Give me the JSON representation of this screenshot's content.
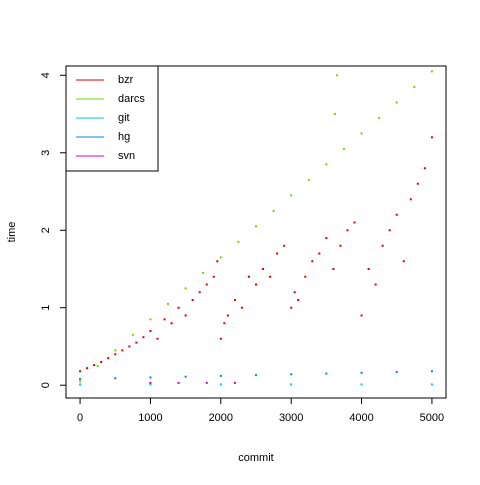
{
  "chart_data": {
    "type": "scatter",
    "x_label": "commit",
    "y_label": "time",
    "xlim": [
      -200,
      5200
    ],
    "ylim": [
      -0.165,
      4.12
    ],
    "xticks": [
      0,
      1000,
      2000,
      3000,
      4000,
      5000
    ],
    "yticks": [
      0,
      1,
      2,
      3,
      4
    ],
    "legend": "top-left",
    "series": [
      {
        "name": "bzr",
        "color": "#e00000",
        "x": [
          0,
          100,
          200,
          300,
          400,
          500,
          600,
          700,
          800,
          900,
          1000,
          1100,
          1200,
          1300,
          1400,
          1500,
          1600,
          1700,
          1800,
          1900,
          1950,
          2000,
          2050,
          2100,
          2200,
          2300,
          2400,
          2500,
          2600,
          2700,
          2800,
          2900,
          3000,
          3050,
          3100,
          3200,
          3300,
          3400,
          3500,
          3600,
          3700,
          3800,
          3900,
          4000,
          4100,
          4200,
          4300,
          4400,
          4500,
          4600,
          4700,
          4800,
          4900,
          5000
        ],
        "values": [
          0.18,
          0.22,
          0.26,
          0.3,
          0.35,
          0.4,
          0.45,
          0.5,
          0.55,
          0.62,
          0.7,
          0.6,
          0.85,
          0.8,
          1.0,
          0.9,
          1.1,
          1.2,
          1.3,
          1.4,
          1.6,
          0.6,
          0.8,
          0.9,
          1.1,
          1.0,
          1.4,
          1.3,
          1.5,
          1.4,
          1.7,
          1.8,
          1.0,
          1.2,
          1.1,
          1.4,
          1.6,
          1.7,
          1.9,
          1.5,
          1.8,
          2.0,
          2.1,
          0.9,
          1.5,
          1.3,
          1.8,
          2.0,
          2.2,
          1.6,
          2.4,
          2.6,
          2.8,
          3.2
        ]
      },
      {
        "name": "darcs",
        "color": "#66dd00",
        "x": [
          0,
          250,
          500,
          750,
          1000,
          1250,
          1500,
          1750,
          2000,
          2250,
          2500,
          2750,
          3000,
          3250,
          3500,
          3750,
          4000,
          4250,
          4500,
          4750,
          5000,
          3620,
          3650
        ],
        "values": [
          0.05,
          0.25,
          0.45,
          0.65,
          0.85,
          1.05,
          1.25,
          1.45,
          1.65,
          1.85,
          2.05,
          2.25,
          2.45,
          2.65,
          2.85,
          3.05,
          3.25,
          3.45,
          3.65,
          3.85,
          4.05,
          3.5,
          4.0
        ]
      },
      {
        "name": "git",
        "color": "#00cccc",
        "x": [
          0,
          1000,
          2000,
          3000,
          4000,
          5000
        ],
        "values": [
          0.01,
          0.01,
          0.01,
          0.01,
          0.01,
          0.01
        ]
      },
      {
        "name": "hg",
        "color": "#0088dd",
        "x": [
          0,
          500,
          1000,
          1500,
          2000,
          2500,
          3000,
          3500,
          4000,
          4500,
          5000
        ],
        "values": [
          0.08,
          0.09,
          0.1,
          0.11,
          0.12,
          0.13,
          0.14,
          0.15,
          0.16,
          0.17,
          0.18
        ]
      },
      {
        "name": "svn",
        "color": "#cc00cc",
        "x": [
          1000,
          1400,
          1800,
          2200
        ],
        "values": [
          0.03,
          0.03,
          0.03,
          0.03
        ]
      }
    ]
  }
}
